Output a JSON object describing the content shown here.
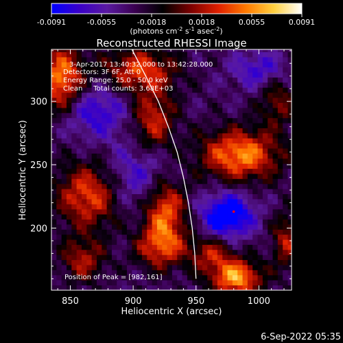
{
  "chart_data": {
    "type": "heatmap",
    "title": "Reconstructed RHESSI Image",
    "xlabel": "Heliocentric X (arcsec)",
    "ylabel": "Heliocentric Y (arcsec)",
    "xlim": [
      835,
      1026
    ],
    "ylim": [
      151,
      341
    ],
    "xticks": [
      850,
      900,
      950,
      1000
    ],
    "yticks": [
      200,
      250,
      300
    ],
    "grid": false,
    "colorbar": {
      "orientation": "horizontal",
      "placement": "top",
      "range": [
        -0.0091,
        0.0091
      ],
      "tick_labels": [
        "-0.0091",
        "-0.0055",
        "-0.0018",
        "0.0018",
        "0.0055",
        "0.0091"
      ],
      "unit_text": "(photons cm",
      "unit_sup1": "-2",
      "unit_mid": " s",
      "unit_sup2": "-1",
      "unit_end": " asec",
      "unit_sup3": "-2",
      "unit_close": ")",
      "colormap": [
        "#0000ff",
        "#3a00c8",
        "#5a1aa0",
        "#3a0050",
        "#000000",
        "#7a0000",
        "#e02000",
        "#ff7a00",
        "#ffd040",
        "#ffffff"
      ]
    },
    "annotations": {
      "line1": "3-Apr-2017 13:40:32.000 to 13:42:28.000",
      "line2": "Detectors: 3F 6F, Att 0",
      "line3": "Energy Range: 25.0 - 50.0 keV",
      "line4": "Clean     Total counts: 3.68E+03",
      "peak": "Position of Peak = [982,161]"
    },
    "limb_curve": [
      [
        899,
        341
      ],
      [
        910,
        320
      ],
      [
        920,
        300
      ],
      [
        928,
        280
      ],
      [
        935,
        260
      ],
      [
        940,
        240
      ],
      [
        944,
        220
      ],
      [
        947,
        200
      ],
      [
        949,
        180
      ],
      [
        950,
        160
      ]
    ],
    "sources": [
      {
        "x": 843,
        "y": 318,
        "sx": 12,
        "sy": 18,
        "amp": 0.0085
      },
      {
        "x": 905,
        "y": 325,
        "sx": 20,
        "sy": 12,
        "amp": 0.0065
      },
      {
        "x": 916,
        "y": 285,
        "sx": 12,
        "sy": 18,
        "amp": 0.006
      },
      {
        "x": 865,
        "y": 226,
        "sx": 18,
        "sy": 18,
        "amp": 0.007
      },
      {
        "x": 860,
        "y": 175,
        "sx": 12,
        "sy": 12,
        "amp": 0.005
      },
      {
        "x": 925,
        "y": 215,
        "sx": 12,
        "sy": 18,
        "amp": 0.008
      },
      {
        "x": 922,
        "y": 185,
        "sx": 14,
        "sy": 12,
        "amp": 0.006
      },
      {
        "x": 985,
        "y": 258,
        "sx": 22,
        "sy": 14,
        "amp": 0.0085
      },
      {
        "x": 962,
        "y": 180,
        "sx": 12,
        "sy": 10,
        "amp": 0.005
      },
      {
        "x": 982,
        "y": 161,
        "sx": 14,
        "sy": 10,
        "amp": 0.0091
      },
      {
        "x": 1022,
        "y": 190,
        "sx": 8,
        "sy": 15,
        "amp": 0.005
      },
      {
        "x": 1015,
        "y": 300,
        "sx": 10,
        "sy": 14,
        "amp": 0.004
      },
      {
        "x": 975,
        "y": 210,
        "sx": 14,
        "sy": 12,
        "amp": -0.008
      },
      {
        "x": 905,
        "y": 240,
        "sx": 20,
        "sy": 20,
        "amp": -0.004
      },
      {
        "x": 870,
        "y": 292,
        "sx": 18,
        "sy": 14,
        "amp": -0.0045
      },
      {
        "x": 1000,
        "y": 325,
        "sx": 15,
        "sy": 10,
        "amp": -0.004
      }
    ]
  },
  "footer": {
    "timestamp": "6-Sep-2022 05:35"
  }
}
